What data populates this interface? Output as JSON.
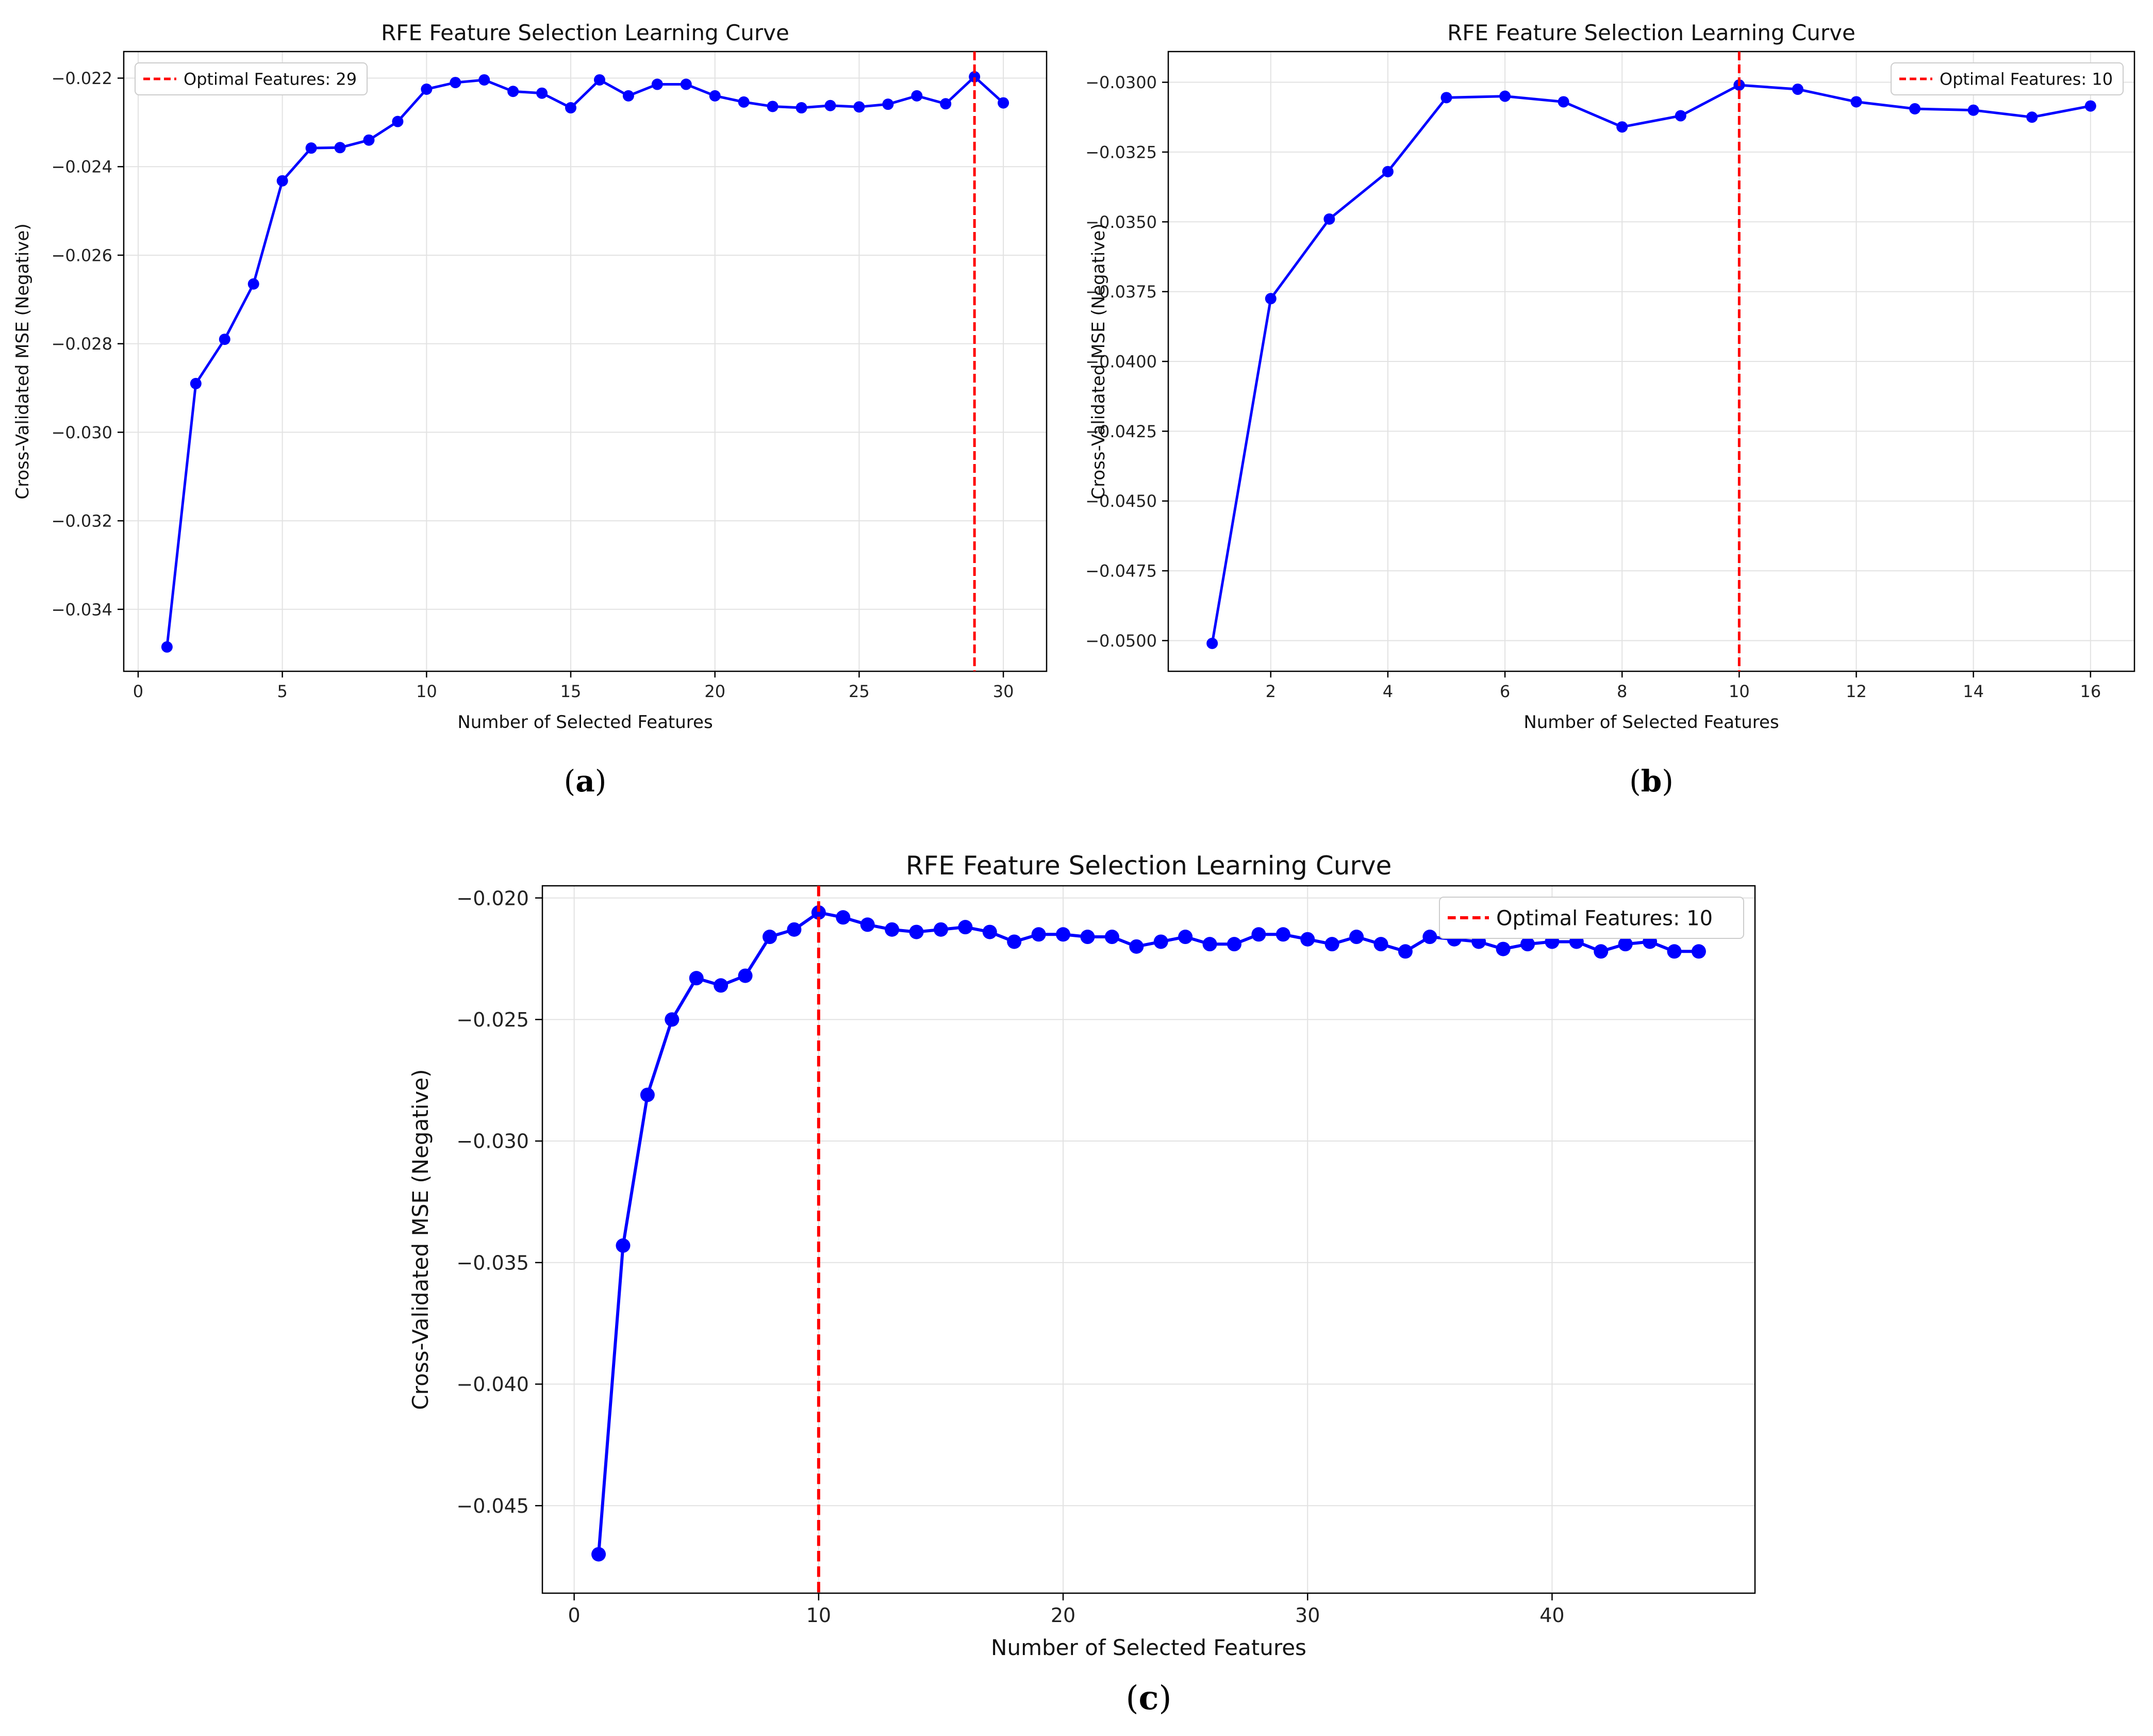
{
  "figure": {
    "subfigure_labels": [
      "a",
      "b",
      "c"
    ]
  },
  "chart_data": [
    {
      "type": "line",
      "title": "RFE Feature Selection Learning Curve",
      "xlabel": "Number of Selected Features",
      "ylabel": "Cross-Validated MSE (Negative)",
      "xlim": [
        -0.5,
        31.5
      ],
      "ylim": [
        -0.0354,
        -0.0214
      ],
      "xticks": [
        0,
        5,
        10,
        15,
        20,
        25,
        30
      ],
      "yticks": [
        -0.034,
        -0.032,
        -0.03,
        -0.028,
        -0.026,
        -0.024,
        -0.022
      ],
      "ytick_labels": [
        "−0.034",
        "−0.032",
        "−0.030",
        "−0.028",
        "−0.026",
        "−0.024",
        "−0.022"
      ],
      "grid": true,
      "legend": "top-left",
      "series": [
        {
          "color": "#0000ff",
          "marker": "circle",
          "x": [
            1,
            2,
            3,
            4,
            5,
            6,
            7,
            8,
            9,
            10,
            11,
            12,
            13,
            14,
            15,
            16,
            17,
            18,
            19,
            20,
            21,
            22,
            23,
            24,
            25,
            26,
            27,
            28,
            29,
            30
          ],
          "values": [
            -0.03485,
            -0.0289,
            -0.0279,
            -0.02665,
            -0.02432,
            -0.02358,
            -0.02357,
            -0.0234,
            -0.02298,
            -0.02225,
            -0.0221,
            -0.02204,
            -0.0223,
            -0.02234,
            -0.02267,
            -0.02204,
            -0.0224,
            -0.02214,
            -0.02214,
            -0.0224,
            -0.02254,
            -0.02264,
            -0.02267,
            -0.02262,
            -0.02265,
            -0.02259,
            -0.0224,
            -0.02258,
            -0.02197,
            -0.02256
          ]
        }
      ],
      "vline": {
        "x": 29,
        "color": "#ff0000",
        "legend_label": "Optimal Features: 29"
      }
    },
    {
      "type": "line",
      "title": "RFE Feature Selection Learning Curve",
      "xlabel": "Number of Selected Features",
      "ylabel": "Cross-Validated MSE (Negative)",
      "xlim": [
        0.25,
        16.75
      ],
      "ylim": [
        -0.0511,
        -0.0289
      ],
      "xticks": [
        2,
        4,
        6,
        8,
        10,
        12,
        14,
        16
      ],
      "yticks": [
        -0.05,
        -0.0475,
        -0.045,
        -0.0425,
        -0.04,
        -0.0375,
        -0.035,
        -0.0325,
        -0.03
      ],
      "ytick_labels": [
        "−0.0500",
        "−0.0475",
        "−0.0450",
        "−0.0425",
        "−0.0400",
        "−0.0375",
        "−0.0350",
        "−0.0325",
        "−0.0300"
      ],
      "grid": true,
      "legend": "top-right",
      "series": [
        {
          "color": "#0000ff",
          "marker": "circle",
          "x": [
            1,
            2,
            3,
            4,
            5,
            6,
            7,
            8,
            9,
            10,
            11,
            12,
            13,
            14,
            15,
            16
          ],
          "values": [
            -0.0501,
            -0.03775,
            -0.0349,
            -0.0332,
            -0.03055,
            -0.0305,
            -0.0307,
            -0.0316,
            -0.0312,
            -0.0301,
            -0.03025,
            -0.0307,
            -0.03095,
            -0.031,
            -0.03125,
            -0.03085
          ]
        }
      ],
      "vline": {
        "x": 10,
        "color": "#ff0000",
        "legend_label": "Optimal Features: 10"
      }
    },
    {
      "type": "line",
      "title": "RFE Feature Selection Learning Curve",
      "xlabel": "Number of Selected Features",
      "ylabel": "Cross-Validated MSE (Negative)",
      "xlim": [
        -1.3,
        48.3
      ],
      "ylim": [
        -0.0486,
        -0.0195
      ],
      "xticks": [
        0,
        10,
        20,
        30,
        40
      ],
      "yticks": [
        -0.045,
        -0.04,
        -0.035,
        -0.03,
        -0.025,
        -0.02
      ],
      "ytick_labels": [
        "−0.045",
        "−0.040",
        "−0.035",
        "−0.030",
        "−0.025",
        "−0.020"
      ],
      "grid": true,
      "legend": "top-right",
      "series": [
        {
          "color": "#0000ff",
          "marker": "circle",
          "x": [
            1,
            2,
            3,
            4,
            5,
            6,
            7,
            8,
            9,
            10,
            11,
            12,
            13,
            14,
            15,
            16,
            17,
            18,
            19,
            20,
            21,
            22,
            23,
            24,
            25,
            26,
            27,
            28,
            29,
            30,
            31,
            32,
            33,
            34,
            35,
            36,
            37,
            38,
            39,
            40,
            41,
            42,
            43,
            44,
            45,
            46
          ],
          "values": [
            -0.047,
            -0.0343,
            -0.0281,
            -0.025,
            -0.0233,
            -0.0236,
            -0.0232,
            -0.0216,
            -0.0213,
            -0.0206,
            -0.0208,
            -0.0211,
            -0.0213,
            -0.0214,
            -0.0213,
            -0.0212,
            -0.0214,
            -0.0218,
            -0.0215,
            -0.0215,
            -0.0216,
            -0.0216,
            -0.022,
            -0.0218,
            -0.0216,
            -0.0219,
            -0.0219,
            -0.0215,
            -0.0215,
            -0.0217,
            -0.0219,
            -0.0216,
            -0.0219,
            -0.0222,
            -0.0216,
            -0.0217,
            -0.0218,
            -0.0221,
            -0.0219,
            -0.0218,
            -0.0218,
            -0.0222,
            -0.0219,
            -0.0218,
            -0.0222,
            -0.0222
          ]
        }
      ],
      "vline": {
        "x": 10,
        "color": "#ff0000",
        "legend_label": "Optimal Features: 10"
      }
    }
  ]
}
